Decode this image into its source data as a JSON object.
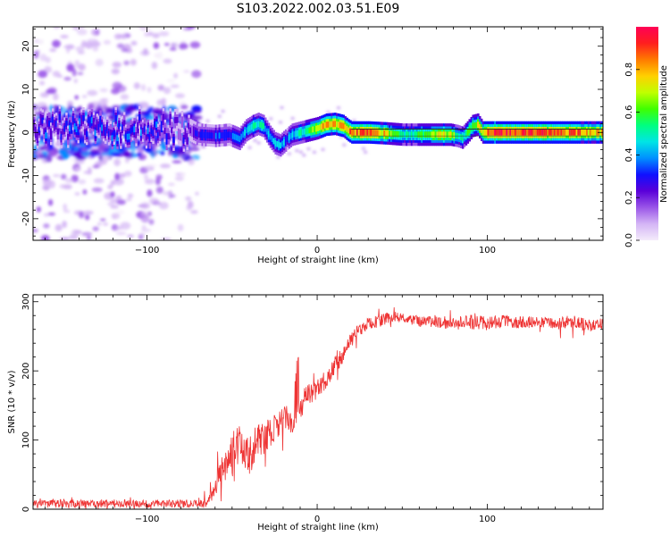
{
  "title": "S103.2022.002.03.51.E09",
  "chart_data": [
    {
      "type": "heatmap",
      "xlabel": "Height of straight line (km)",
      "ylabel": "Frequency (Hz)",
      "xlim": [
        -167,
        168
      ],
      "ylim": [
        -25,
        24.5
      ],
      "xticks": [
        -100,
        0,
        100
      ],
      "yticks": [
        -20,
        -10,
        0,
        10,
        20
      ],
      "colorbar": {
        "label": "Normalized spectral amplitude",
        "range": [
          0,
          1
        ],
        "ticks": [
          "0.0",
          "0.2",
          "0.4",
          "0.6",
          "0.8"
        ],
        "colormap": "rainbow",
        "colors": [
          "#f4ecfb",
          "#d4b5f5",
          "#9a55e8",
          "#5a00d9",
          "#1010ff",
          "#0090ff",
          "#00e5e5",
          "#00ff80",
          "#40ff00",
          "#c0ff00",
          "#ffd000",
          "#ff7a00",
          "#ff1e1e",
          "#ff0055"
        ]
      },
      "ridge": {
        "description_source": "frequency peak (Hz) vs height (km)",
        "x": [
          -167,
          -150,
          -130,
          -110,
          -90,
          -75,
          -70,
          -60,
          -52,
          -46,
          -42,
          -38,
          -35,
          -32,
          -28,
          -25,
          -22,
          -18,
          -15,
          -10,
          -5,
          0,
          5,
          10,
          15,
          18,
          20,
          30,
          40,
          50,
          60,
          70,
          78,
          82,
          85,
          88,
          91,
          94,
          97,
          100,
          110,
          130,
          150,
          168
        ],
        "y": [
          0.5,
          1.5,
          0.5,
          1.5,
          0.8,
          0.5,
          -0.5,
          -0.8,
          -0.5,
          -1.5,
          0.5,
          1.5,
          2.0,
          1.5,
          -1.0,
          -2.5,
          -3.0,
          -1.5,
          -0.5,
          0.0,
          0.5,
          1.0,
          1.8,
          2.0,
          1.5,
          0.5,
          0.0,
          0.0,
          -0.2,
          -0.5,
          -0.5,
          -0.5,
          -0.5,
          -0.8,
          -1.2,
          0.0,
          1.5,
          1.8,
          0.0,
          0.0,
          0.0,
          0.0,
          0.0,
          0.0
        ],
        "amplitude": [
          0.3,
          0.3,
          0.3,
          0.3,
          0.3,
          0.2,
          0.3,
          0.35,
          0.35,
          0.4,
          0.4,
          0.5,
          0.55,
          0.5,
          0.4,
          0.45,
          0.4,
          0.35,
          0.4,
          0.5,
          0.55,
          0.7,
          0.8,
          0.8,
          0.8,
          0.85,
          0.85,
          0.9,
          0.75,
          0.5,
          0.6,
          0.7,
          0.7,
          0.55,
          0.5,
          0.6,
          0.65,
          0.7,
          0.7,
          0.9,
          0.95,
          0.9,
          0.85,
          0.75
        ]
      }
    },
    {
      "type": "line",
      "xlabel": "Height of straight line (km)",
      "ylabel": "SNR (10 * v/v)",
      "xlim": [
        -167,
        168
      ],
      "ylim": [
        0,
        310
      ],
      "xticks": [
        -100,
        0,
        100
      ],
      "yticks": [
        0,
        100,
        200,
        300
      ],
      "color": "#ee3333",
      "envelope": {
        "x": [
          -167,
          -65,
          -60,
          -55,
          -50,
          -45,
          -40,
          -35,
          -30,
          -25,
          -20,
          -15,
          -10,
          -5,
          0,
          5,
          10,
          15,
          20,
          25,
          30,
          40,
          50,
          60,
          70,
          80,
          90,
          100,
          110,
          120,
          130,
          140,
          150,
          160,
          168
        ],
        "mean": [
          8,
          8,
          30,
          60,
          80,
          90,
          75,
          100,
          105,
          115,
          135,
          125,
          150,
          165,
          175,
          185,
          205,
          225,
          245,
          260,
          268,
          275,
          278,
          270,
          272,
          268,
          272,
          270,
          272,
          270,
          272,
          268,
          272,
          265,
          268
        ],
        "spread": [
          10,
          10,
          25,
          40,
          55,
          55,
          45,
          45,
          40,
          35,
          30,
          35,
          35,
          30,
          25,
          25,
          25,
          22,
          18,
          15,
          15,
          15,
          15,
          15,
          15,
          15,
          20,
          20,
          15,
          15,
          15,
          15,
          15,
          15,
          15
        ]
      }
    }
  ]
}
